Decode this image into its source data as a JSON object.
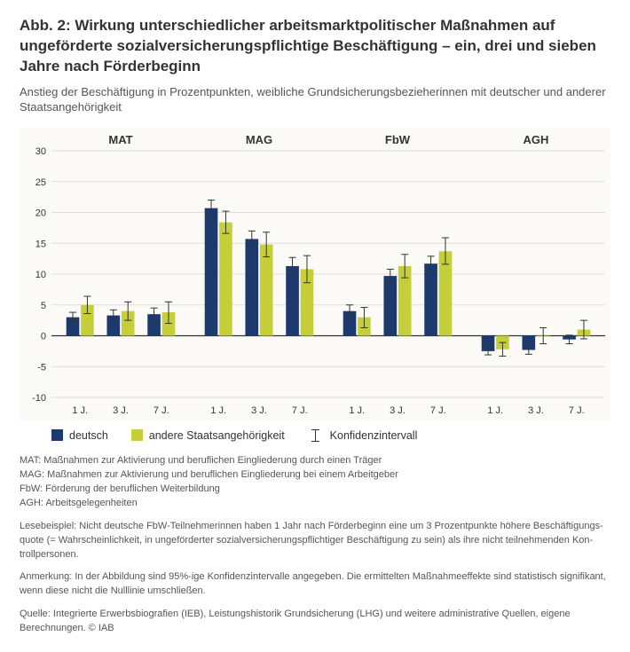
{
  "title": "Abb. 2: Wirkung unterschiedlicher arbeitsmarktpolitischer Maßnahmen auf ungeförderte sozialversicherungspflichtige Beschäftigung – ein, drei und sieben Jahre nach Förderbeginn",
  "subtitle": "Anstieg der Beschäftigung in Prozentpunkten, weibliche Grundsicherungsbezieherinnen mit deutscher und anderer Staatsangehörigkeit",
  "chart": {
    "type": "grouped-bar-with-error-bars",
    "background_color": "#fbfaf7",
    "grid_color": "#dddddd",
    "axis_color": "#999999",
    "baseline_color": "#333333",
    "text_color": "#333333",
    "panel_label_fontsize": 13,
    "panel_label_fontweight": "bold",
    "tick_label_fontsize": 11,
    "y_axis": {
      "min": -10,
      "max": 30,
      "tick_step": 5,
      "ticks": [
        -10,
        -5,
        0,
        5,
        10,
        15,
        20,
        25,
        30
      ]
    },
    "x_labels": [
      "1 J.",
      "3 J.",
      "7 J."
    ],
    "series_colors": {
      "deutsch": "#1d3a6e",
      "andere": "#c6cf3a"
    },
    "error_bar_color": "#333333",
    "bar_width_ratio": 0.32,
    "panels": [
      {
        "label": "MAT",
        "groups": [
          {
            "deutsch": {
              "v": 3.0,
              "lo": 2.2,
              "hi": 3.8
            },
            "andere": {
              "v": 5.0,
              "lo": 3.6,
              "hi": 6.4
            }
          },
          {
            "deutsch": {
              "v": 3.3,
              "lo": 2.4,
              "hi": 4.2
            },
            "andere": {
              "v": 4.0,
              "lo": 2.5,
              "hi": 5.5
            }
          },
          {
            "deutsch": {
              "v": 3.5,
              "lo": 2.4,
              "hi": 4.5
            },
            "andere": {
              "v": 3.8,
              "lo": 2.0,
              "hi": 5.5
            }
          }
        ]
      },
      {
        "label": "MAG",
        "groups": [
          {
            "deutsch": {
              "v": 20.7,
              "lo": 19.5,
              "hi": 22.0
            },
            "andere": {
              "v": 18.4,
              "lo": 16.6,
              "hi": 20.2
            }
          },
          {
            "deutsch": {
              "v": 15.7,
              "lo": 14.4,
              "hi": 17.0
            },
            "andere": {
              "v": 14.8,
              "lo": 12.8,
              "hi": 16.8
            }
          },
          {
            "deutsch": {
              "v": 11.3,
              "lo": 10.0,
              "hi": 12.7
            },
            "andere": {
              "v": 10.8,
              "lo": 8.6,
              "hi": 13.0
            }
          }
        ]
      },
      {
        "label": "FbW",
        "groups": [
          {
            "deutsch": {
              "v": 4.0,
              "lo": 3.0,
              "hi": 5.0
            },
            "andere": {
              "v": 3.0,
              "lo": 1.3,
              "hi": 4.6
            }
          },
          {
            "deutsch": {
              "v": 9.7,
              "lo": 8.6,
              "hi": 10.8
            },
            "andere": {
              "v": 11.3,
              "lo": 9.4,
              "hi": 13.2
            }
          },
          {
            "deutsch": {
              "v": 11.7,
              "lo": 10.5,
              "hi": 12.9
            },
            "andere": {
              "v": 13.7,
              "lo": 11.6,
              "hi": 15.9
            }
          }
        ]
      },
      {
        "label": "AGH",
        "groups": [
          {
            "deutsch": {
              "v": -2.5,
              "lo": -3.1,
              "hi": -1.9
            },
            "andere": {
              "v": -2.2,
              "lo": -3.3,
              "hi": -1.1
            }
          },
          {
            "deutsch": {
              "v": -2.3,
              "lo": -3.0,
              "hi": -1.6
            },
            "andere": {
              "v": 0.0,
              "lo": -1.3,
              "hi": 1.3
            }
          },
          {
            "deutsch": {
              "v": -0.6,
              "lo": -1.3,
              "hi": 0.1
            },
            "andere": {
              "v": 1.0,
              "lo": -0.5,
              "hi": 2.5
            }
          }
        ]
      }
    ]
  },
  "legend": {
    "deutsch": "deutsch",
    "andere": "andere Staatsangehörigkeit",
    "ci": "Konfidenzintervall"
  },
  "defs": {
    "mat": "MAT: Maßnahmen zur Aktivierung und beruflichen Eingliederung durch einen Träger",
    "mag": "MAG: Maßnahmen zur Aktivierung und beruflichen Eingliederung bei einem Arbeitgeber",
    "fbw": "FbW: Förderung der beruflichen Weiterbildung",
    "agh": "AGH: Arbeitsgelegenheiten"
  },
  "lesebeispiel": "Lesebeispiel: Nicht deutsche FbW-Teilnehmerinnen haben 1 Jahr nach Förderbeginn eine um 3 Prozentpunkte höhere Beschäftigungs­quote (= Wahrscheinlichkeit, in ungeförderter sozialversicherungspflichtiger Beschäftigung zu sein) als ihre nicht teilnehmenden Kon­trollpersonen.",
  "anmerkung": "Anmerkung: In der Abbildung sind 95%-ige Konfidenzintervalle angegeben. Die ermittelten Maßnahmeeffekte sind statistisch signifikant, wenn diese nicht die Nulllinie umschließen.",
  "quelle": "Quelle: Integrierte Erwerbsbiografien (IEB), Leistungshistorik Grundsicherung (LHG) und weitere administrative Quellen, eigene Berechnungen. © IAB"
}
